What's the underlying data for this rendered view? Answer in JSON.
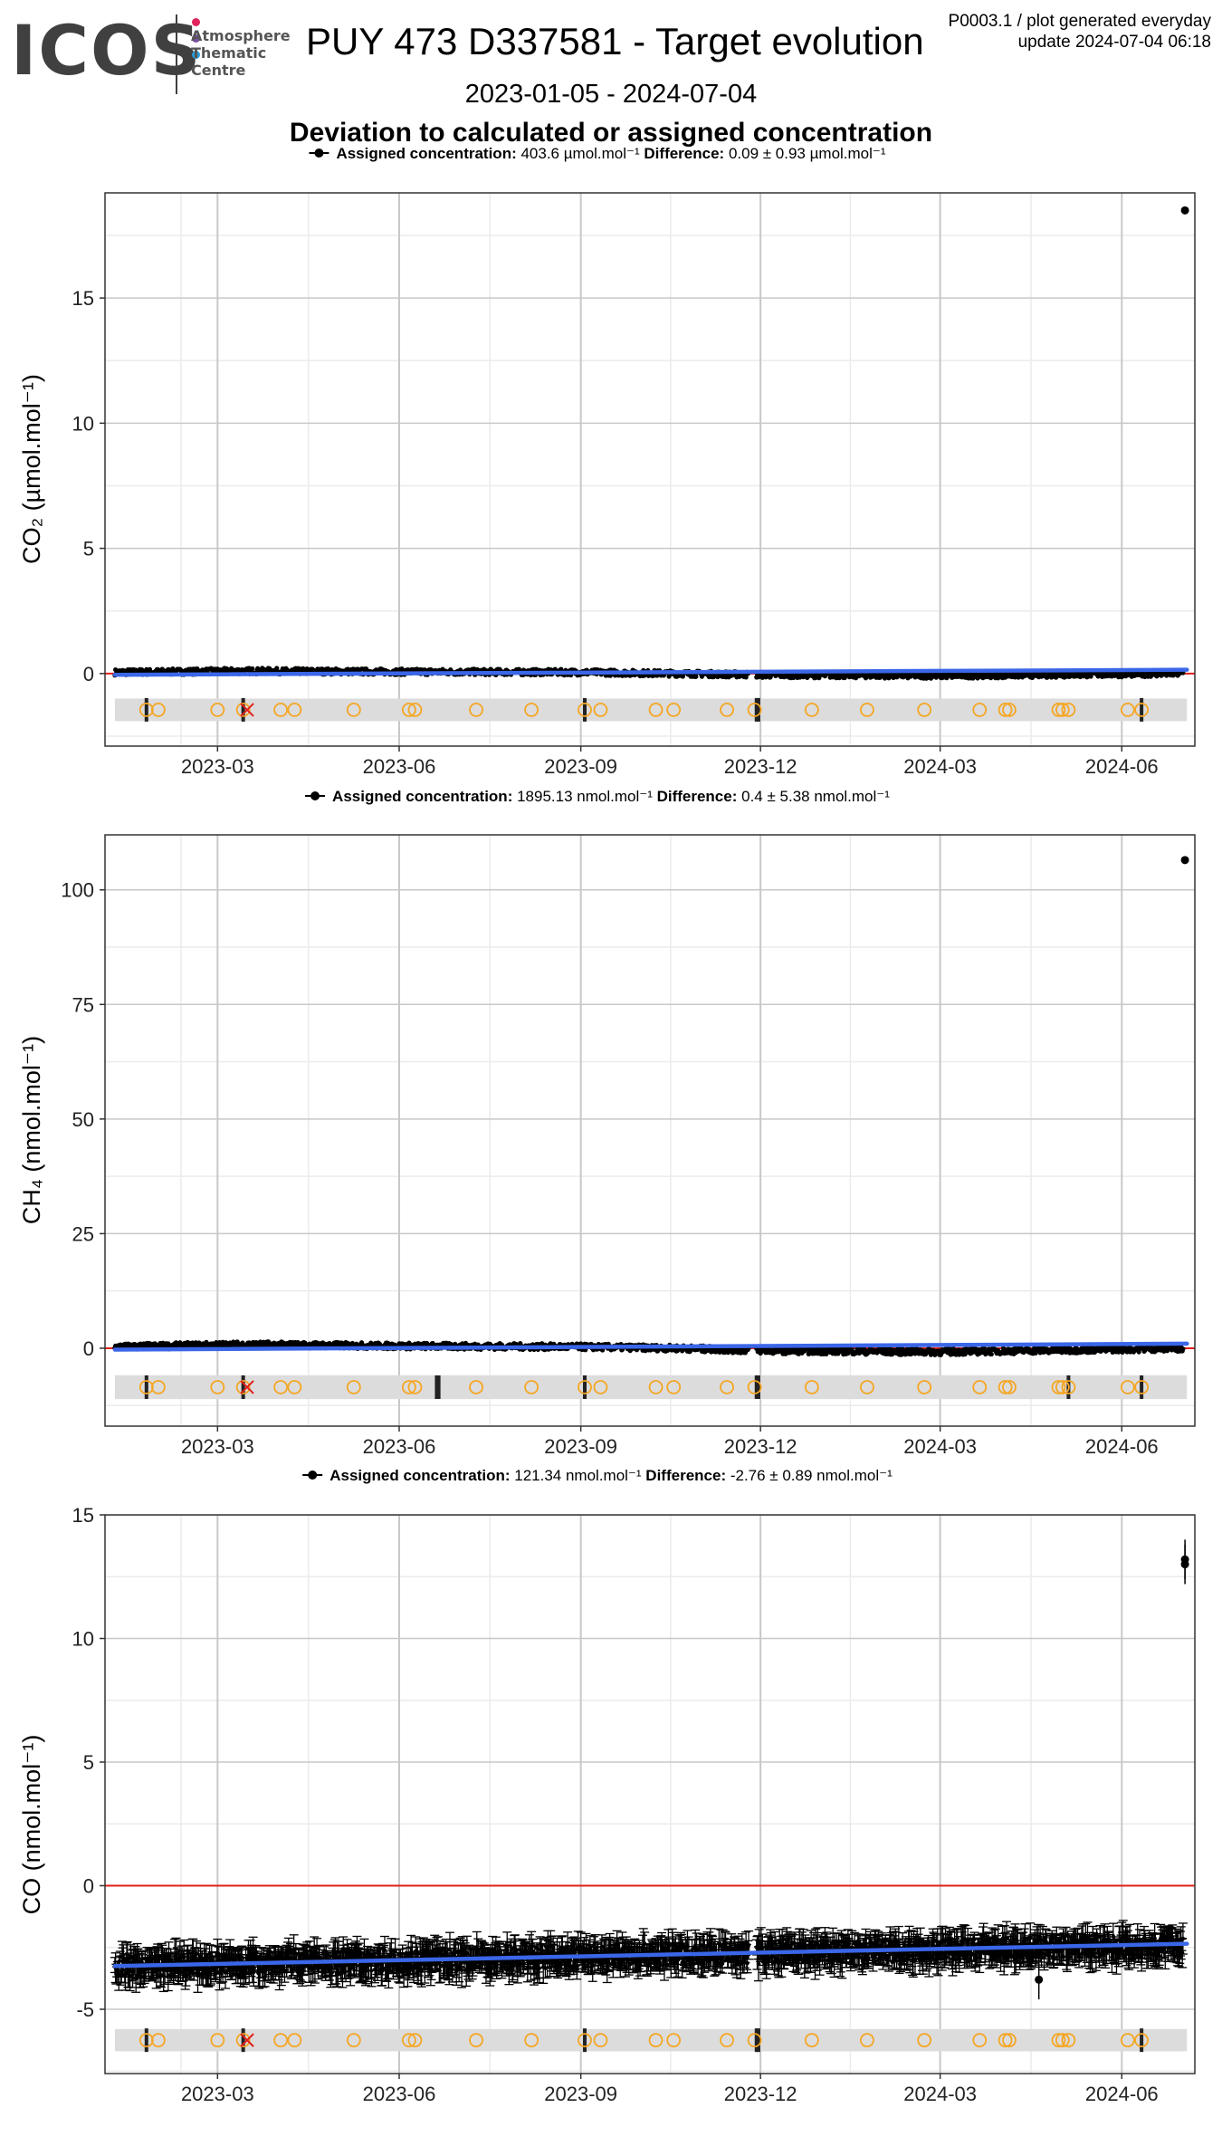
{
  "logo": {
    "text": "ICOS",
    "sub_lines": [
      "Atmosphere",
      "Thematic",
      "Centre"
    ],
    "dot_colors": [
      "#e0245e",
      "#7b4fa0",
      "#2a9ad6"
    ]
  },
  "header": {
    "title": "PUY 473 D337581 - Target evolution",
    "meta_line1": "P0003.1 / plot generated everyday",
    "meta_line2": "update  2024-07-04 06:18",
    "date_range": "2023-01-05 - 2024-07-04",
    "subtitle": "Deviation to calculated or assigned concentration"
  },
  "colors": {
    "points": "#000000",
    "trend": "#3a66e8",
    "zero_line": "#e0201b",
    "flag_circle": "#f5a623",
    "flag_cross": "#e0201b",
    "flag_band": "#dcdcdc",
    "grid_major": "#c8c8c8",
    "grid_minor": "#ebebeb"
  },
  "chart_data": [
    {
      "type": "scatter",
      "species": "CO2",
      "legend": {
        "label": "Assigned concentration:",
        "value": "403.6 µmol.mol⁻¹",
        "diff_label": "Difference:",
        "diff_value": "0.09 ± 0.93 µmol.mol⁻¹"
      },
      "ylabel": "CO₂ (µmol.mol⁻¹)",
      "ylim": [
        -2.9,
        19.2
      ],
      "yticks": [
        0,
        5,
        10,
        15
      ],
      "ytick_labels": [
        "0",
        "5",
        "10",
        "15"
      ],
      "xlim": [
        "2023-01-03",
        "2024-07-08"
      ],
      "xticks": [
        "2023-03-01",
        "2023-06-01",
        "2023-09-01",
        "2023-12-01",
        "2024-03-01",
        "2024-06-01"
      ],
      "xtick_labels": [
        "2023-03",
        "2023-06",
        "2023-09",
        "2023-12",
        "2024-03",
        "2024-06"
      ],
      "band_y": -1.45,
      "band_halfwidth": 0.45,
      "series": {
        "baseline": [
          [
            "2023-01-08",
            0.05
          ],
          [
            "2023-03-15",
            0.1
          ],
          [
            "2023-06-01",
            0.07
          ],
          [
            "2023-09-01",
            0.05
          ],
          [
            "2023-10-20",
            0.0
          ],
          [
            "2023-12-01",
            -0.05
          ],
          [
            "2024-03-01",
            -0.08
          ],
          [
            "2024-07-01",
            0.0
          ]
        ],
        "spread": 0.12,
        "error_spread": 0.0,
        "trend": [
          [
            "2023-01-08",
            -0.05
          ],
          [
            "2024-07-04",
            0.15
          ]
        ],
        "outliers": [
          {
            "x": "2024-07-03",
            "y": 18.5
          }
        ]
      },
      "flags": {
        "circles": [
          "2023-01-24",
          "2023-01-30",
          "2023-03-01",
          "2023-03-14",
          "2023-04-02",
          "2023-04-09",
          "2023-05-09",
          "2023-06-06",
          "2023-06-09",
          "2023-07-10",
          "2023-08-07",
          "2023-09-03",
          "2023-09-11",
          "2023-10-09",
          "2023-10-18",
          "2023-11-14",
          "2023-11-28",
          "2023-12-27",
          "2024-01-24",
          "2024-02-22",
          "2024-03-21",
          "2024-04-03",
          "2024-04-05",
          "2024-04-30",
          "2024-05-02",
          "2024-05-05",
          "2024-06-04",
          "2024-06-11"
        ],
        "crosses": [
          "2023-03-16"
        ],
        "bars": [
          "2023-01-24",
          "2023-03-14",
          "2023-09-03",
          "2023-11-29",
          "2023-11-30",
          "2024-06-11"
        ]
      }
    },
    {
      "type": "scatter",
      "species": "CH4",
      "legend": {
        "label": "Assigned concentration:",
        "value": "1895.13 nmol.mol⁻¹",
        "diff_label": "Difference:",
        "diff_value": "0.4 ± 5.38 nmol.mol⁻¹"
      },
      "ylabel": "CH₄ (nmol.mol⁻¹)",
      "ylim": [
        -17,
        112
      ],
      "yticks": [
        0,
        25,
        50,
        75,
        100
      ],
      "ytick_labels": [
        "0",
        "25",
        "50",
        "75",
        "100"
      ],
      "xlim": [
        "2023-01-03",
        "2024-07-08"
      ],
      "xticks": [
        "2023-03-01",
        "2023-06-01",
        "2023-09-01",
        "2023-12-01",
        "2024-03-01",
        "2024-06-01"
      ],
      "xtick_labels": [
        "2023-03",
        "2023-06",
        "2023-09",
        "2023-12",
        "2024-03",
        "2024-06"
      ],
      "band_y": -8.5,
      "band_halfwidth": 2.6,
      "series": {
        "baseline": [
          [
            "2023-01-08",
            0.3
          ],
          [
            "2023-03-15",
            0.8
          ],
          [
            "2023-06-01",
            0.5
          ],
          [
            "2023-09-01",
            0.3
          ],
          [
            "2023-10-20",
            0.0
          ],
          [
            "2023-12-01",
            -0.5
          ],
          [
            "2024-03-01",
            -0.8
          ],
          [
            "2024-07-01",
            0.0
          ]
        ],
        "spread": 0.7,
        "error_spread": 0.0,
        "trend": [
          [
            "2023-01-08",
            -0.3
          ],
          [
            "2024-07-04",
            1.0
          ]
        ],
        "outliers": [
          {
            "x": "2024-07-03",
            "y": 106.5
          }
        ]
      },
      "flags": {
        "circles": [
          "2023-01-24",
          "2023-01-30",
          "2023-03-01",
          "2023-03-14",
          "2023-04-02",
          "2023-04-09",
          "2023-05-09",
          "2023-06-06",
          "2023-06-09",
          "2023-07-10",
          "2023-08-07",
          "2023-09-03",
          "2023-09-11",
          "2023-10-09",
          "2023-10-18",
          "2023-11-14",
          "2023-11-28",
          "2023-12-27",
          "2024-01-24",
          "2024-02-22",
          "2024-03-21",
          "2024-04-03",
          "2024-04-05",
          "2024-04-30",
          "2024-05-02",
          "2024-05-05",
          "2024-06-04",
          "2024-06-11"
        ],
        "crosses": [
          "2023-03-16"
        ],
        "bars": [
          "2023-01-24",
          "2023-03-14",
          "2023-06-20",
          "2023-06-21",
          "2023-09-03",
          "2023-11-29",
          "2023-11-30",
          "2024-05-05",
          "2024-06-11"
        ]
      }
    },
    {
      "type": "scatter",
      "species": "CO",
      "legend": {
        "label": "Assigned concentration:",
        "value": "121.34 nmol.mol⁻¹",
        "diff_label": "Difference:",
        "diff_value": "-2.76 ± 0.89 nmol.mol⁻¹"
      },
      "ylabel": "CO (nmol.mol⁻¹)",
      "ylim": [
        -7.6,
        15
      ],
      "yticks": [
        -5,
        0,
        5,
        10,
        15
      ],
      "ytick_labels": [
        "-5",
        "0",
        "5",
        "10",
        "15"
      ],
      "xlim": [
        "2023-01-03",
        "2024-07-08"
      ],
      "xticks": [
        "2023-03-01",
        "2023-06-01",
        "2023-09-01",
        "2023-12-01",
        "2024-03-01",
        "2024-06-01"
      ],
      "xtick_labels": [
        "2023-03",
        "2023-06",
        "2023-09",
        "2023-12",
        "2024-03",
        "2024-06"
      ],
      "band_y": -6.25,
      "band_halfwidth": 0.45,
      "series": {
        "baseline": [
          [
            "2023-01-08",
            -3.3
          ],
          [
            "2023-04-01",
            -3.1
          ],
          [
            "2023-07-01",
            -3.0
          ],
          [
            "2023-10-01",
            -2.8
          ],
          [
            "2024-01-01",
            -2.7
          ],
          [
            "2024-04-01",
            -2.55
          ],
          [
            "2024-07-01",
            -2.4
          ]
        ],
        "spread": 0.45,
        "error_spread": 0.5,
        "trend": [
          [
            "2023-01-08",
            -3.25
          ],
          [
            "2024-07-04",
            -2.35
          ]
        ],
        "outliers": [
          {
            "x": "2024-07-03",
            "y": 13.2
          },
          {
            "x": "2024-07-03",
            "y": 13.0
          },
          {
            "x": "2024-04-20",
            "y": -3.8
          }
        ]
      },
      "flags": {
        "circles": [
          "2023-01-24",
          "2023-01-30",
          "2023-03-01",
          "2023-03-14",
          "2023-04-02",
          "2023-04-09",
          "2023-05-09",
          "2023-06-06",
          "2023-06-09",
          "2023-07-10",
          "2023-08-07",
          "2023-09-03",
          "2023-09-11",
          "2023-10-09",
          "2023-10-18",
          "2023-11-14",
          "2023-11-28",
          "2023-12-27",
          "2024-01-24",
          "2024-02-22",
          "2024-03-21",
          "2024-04-03",
          "2024-04-05",
          "2024-04-30",
          "2024-05-02",
          "2024-05-05",
          "2024-06-04",
          "2024-06-11"
        ],
        "crosses": [
          "2023-03-16"
        ],
        "bars": [
          "2023-01-24",
          "2023-03-14",
          "2023-09-03",
          "2023-11-29",
          "2023-11-30",
          "2024-06-11"
        ]
      }
    }
  ]
}
